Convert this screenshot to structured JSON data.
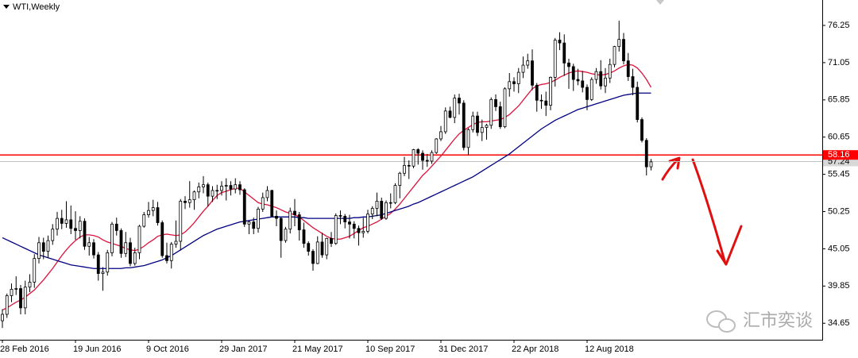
{
  "chart_data": {
    "type": "candlestick",
    "title": "WTI,Weekly",
    "watermark": "汇市奕谈",
    "categories": [
      "28 Feb 2016",
      null,
      null,
      null,
      null,
      null,
      null,
      null,
      null,
      null,
      null,
      null,
      null,
      null,
      null,
      null,
      "19 Jun 2016",
      null,
      null,
      null,
      null,
      null,
      null,
      null,
      null,
      null,
      null,
      null,
      null,
      null,
      null,
      null,
      "9 Oct 2016",
      null,
      null,
      null,
      null,
      null,
      null,
      null,
      null,
      null,
      null,
      null,
      null,
      null,
      null,
      null,
      "29 Jan 2017",
      null,
      null,
      null,
      null,
      null,
      null,
      null,
      null,
      null,
      null,
      null,
      null,
      null,
      null,
      null,
      "21 May 2017",
      null,
      null,
      null,
      null,
      null,
      null,
      null,
      null,
      null,
      null,
      null,
      null,
      null,
      null,
      null,
      "10 Sep 2017",
      null,
      null,
      null,
      null,
      null,
      null,
      null,
      null,
      null,
      null,
      null,
      null,
      null,
      null,
      null,
      "31 Dec 2017",
      null,
      null,
      null,
      null,
      null,
      null,
      null,
      null,
      null,
      null,
      null,
      null,
      null,
      null,
      null,
      "22 Apr 2018",
      null,
      null,
      null,
      null,
      null,
      null,
      null,
      null,
      null,
      null,
      null,
      null,
      null,
      null,
      null,
      "12 Aug 2018",
      null,
      null,
      null,
      null,
      null,
      null,
      null,
      null,
      null,
      null,
      null,
      null,
      null,
      null
    ],
    "ohlc": [
      [
        35.0,
        36.6,
        34.0,
        35.9
      ],
      [
        35.9,
        38.8,
        35.4,
        38.5
      ],
      [
        38.5,
        40.2,
        37.6,
        39.4
      ],
      [
        39.4,
        41.2,
        38.6,
        39.5
      ],
      [
        39.5,
        40.0,
        35.9,
        36.8
      ],
      [
        36.8,
        40.6,
        35.9,
        39.7
      ],
      [
        39.7,
        41.5,
        39.0,
        40.4
      ],
      [
        40.4,
        44.3,
        39.6,
        43.7
      ],
      [
        43.7,
        46.7,
        43.0,
        45.9
      ],
      [
        45.9,
        46.6,
        43.6,
        44.7
      ],
      [
        44.7,
        46.9,
        43.8,
        46.2
      ],
      [
        46.2,
        48.5,
        45.6,
        47.8
      ],
      [
        47.8,
        50.2,
        46.9,
        49.3
      ],
      [
        49.3,
        50.5,
        47.8,
        48.6
      ],
      [
        48.6,
        51.7,
        48.0,
        49.1
      ],
      [
        49.1,
        51.1,
        47.1,
        47.9
      ],
      [
        47.9,
        50.3,
        46.3,
        47.6
      ],
      [
        47.6,
        49.6,
        46.5,
        48.9
      ],
      [
        48.9,
        49.3,
        44.9,
        45.4
      ],
      [
        45.4,
        46.7,
        44.1,
        45.9
      ],
      [
        45.9,
        46.4,
        43.7,
        44.2
      ],
      [
        44.2,
        44.6,
        40.6,
        41.6
      ],
      [
        41.6,
        42.5,
        39.2,
        41.8
      ],
      [
        41.8,
        44.9,
        41.3,
        44.5
      ],
      [
        44.5,
        48.8,
        44.0,
        48.5
      ],
      [
        48.5,
        49.4,
        46.9,
        47.6
      ],
      [
        47.6,
        47.9,
        43.8,
        44.4
      ],
      [
        44.4,
        47.4,
        43.9,
        45.9
      ],
      [
        45.9,
        46.6,
        42.6,
        43.0
      ],
      [
        43.0,
        45.2,
        42.7,
        44.5
      ],
      [
        44.5,
        48.4,
        43.6,
        48.2
      ],
      [
        48.2,
        50.2,
        48.0,
        49.8
      ],
      [
        49.8,
        51.6,
        49.4,
        50.4
      ],
      [
        50.4,
        51.9,
        49.6,
        50.8
      ],
      [
        50.8,
        51.6,
        48.3,
        48.7
      ],
      [
        48.7,
        49.0,
        43.8,
        44.1
      ],
      [
        44.1,
        45.9,
        43.0,
        43.4
      ],
      [
        43.4,
        46.0,
        42.3,
        45.7
      ],
      [
        45.7,
        49.0,
        45.2,
        46.1
      ],
      [
        46.1,
        52.0,
        44.8,
        51.7
      ],
      [
        51.7,
        52.4,
        50.6,
        51.5
      ],
      [
        51.5,
        54.5,
        50.8,
        51.9
      ],
      [
        51.9,
        53.2,
        50.5,
        53.0
      ],
      [
        53.0,
        54.3,
        52.1,
        53.7
      ],
      [
        53.7,
        55.2,
        52.8,
        54.0
      ],
      [
        54.0,
        54.3,
        51.0,
        52.4
      ],
      [
        52.4,
        53.8,
        51.6,
        53.2
      ],
      [
        53.2,
        54.0,
        52.0,
        53.2
      ],
      [
        53.2,
        54.5,
        52.5,
        53.8
      ],
      [
        53.8,
        54.9,
        51.8,
        53.9
      ],
      [
        53.9,
        54.5,
        52.5,
        53.4
      ],
      [
        53.4,
        54.9,
        52.8,
        54.0
      ],
      [
        54.0,
        54.5,
        52.6,
        53.3
      ],
      [
        53.3,
        53.5,
        48.1,
        48.5
      ],
      [
        48.5,
        49.0,
        47.1,
        48.8
      ],
      [
        48.8,
        49.4,
        47.1,
        47.9
      ],
      [
        47.9,
        50.9,
        47.3,
        50.6
      ],
      [
        50.6,
        52.9,
        50.2,
        52.2
      ],
      [
        52.2,
        53.8,
        51.7,
        53.2
      ],
      [
        53.2,
        53.3,
        49.5,
        49.6
      ],
      [
        49.6,
        50.4,
        48.2,
        49.3
      ],
      [
        49.3,
        49.5,
        43.8,
        46.2
      ],
      [
        46.2,
        48.1,
        45.9,
        47.8
      ],
      [
        47.8,
        50.8,
        47.2,
        50.3
      ],
      [
        50.3,
        52.0,
        48.2,
        49.8
      ],
      [
        49.8,
        50.2,
        46.2,
        47.7
      ],
      [
        47.7,
        48.7,
        45.2,
        45.8
      ],
      [
        45.8,
        46.1,
        44.1,
        44.7
      ],
      [
        44.7,
        45.0,
        42.0,
        43.0
      ],
      [
        43.0,
        46.8,
        42.9,
        46.0
      ],
      [
        46.0,
        47.3,
        43.8,
        44.2
      ],
      [
        44.2,
        46.6,
        43.6,
        46.5
      ],
      [
        46.5,
        47.4,
        45.3,
        45.8
      ],
      [
        45.8,
        50.0,
        45.6,
        49.7
      ],
      [
        49.7,
        50.4,
        48.5,
        49.6
      ],
      [
        49.6,
        49.9,
        47.9,
        48.8
      ],
      [
        48.8,
        49.8,
        46.5,
        48.5
      ],
      [
        48.5,
        48.9,
        46.5,
        47.9
      ],
      [
        47.9,
        48.3,
        45.5,
        47.3
      ],
      [
        47.3,
        49.4,
        46.6,
        47.5
      ],
      [
        47.5,
        50.5,
        47.2,
        49.9
      ],
      [
        49.9,
        51.0,
        49.2,
        50.7
      ],
      [
        50.7,
        52.9,
        49.6,
        51.7
      ],
      [
        51.7,
        52.2,
        49.1,
        49.3
      ],
      [
        49.3,
        51.8,
        49.1,
        51.5
      ],
      [
        51.5,
        52.8,
        50.7,
        51.5
      ],
      [
        51.5,
        54.2,
        51.3,
        53.9
      ],
      [
        53.9,
        55.8,
        52.1,
        55.6
      ],
      [
        55.6,
        57.9,
        55.2,
        56.7
      ],
      [
        56.7,
        57.4,
        54.8,
        56.6
      ],
      [
        56.6,
        59.0,
        56.3,
        58.9
      ],
      [
        58.9,
        59.1,
        56.8,
        58.4
      ],
      [
        58.4,
        58.8,
        56.1,
        57.4
      ],
      [
        57.4,
        58.3,
        56.5,
        57.3
      ],
      [
        57.3,
        58.8,
        56.9,
        58.5
      ],
      [
        58.5,
        60.5,
        58.3,
        60.4
      ],
      [
        60.4,
        62.2,
        60.1,
        61.4
      ],
      [
        61.4,
        64.8,
        61.1,
        64.3
      ],
      [
        64.3,
        64.9,
        63.3,
        63.4
      ],
      [
        63.4,
        66.6,
        62.6,
        66.1
      ],
      [
        66.1,
        66.7,
        63.8,
        65.4
      ],
      [
        65.4,
        65.8,
        58.8,
        59.2
      ],
      [
        59.2,
        61.9,
        58.1,
        61.7
      ],
      [
        61.7,
        64.2,
        61.3,
        63.6
      ],
      [
        63.6,
        64.2,
        60.8,
        61.3
      ],
      [
        61.3,
        63.1,
        60.1,
        62.0
      ],
      [
        62.0,
        62.5,
        60.3,
        62.3
      ],
      [
        62.3,
        66.2,
        61.8,
        65.9
      ],
      [
        65.9,
        66.6,
        64.3,
        64.9
      ],
      [
        64.9,
        65.6,
        61.8,
        62.1
      ],
      [
        62.1,
        67.6,
        61.9,
        67.4
      ],
      [
        67.4,
        69.6,
        66.3,
        68.4
      ],
      [
        68.4,
        69.0,
        67.0,
        68.1
      ],
      [
        68.1,
        70.3,
        66.8,
        69.7
      ],
      [
        69.7,
        71.9,
        68.9,
        70.7
      ],
      [
        70.7,
        72.3,
        70.2,
        71.3
      ],
      [
        71.3,
        72.9,
        67.2,
        67.9
      ],
      [
        67.9,
        68.2,
        64.2,
        65.8
      ],
      [
        65.8,
        66.6,
        64.6,
        65.7
      ],
      [
        65.7,
        67.0,
        63.6,
        65.1
      ],
      [
        65.1,
        69.1,
        64.4,
        69.0
      ],
      [
        69.0,
        74.5,
        67.7,
        74.2
      ],
      [
        74.2,
        75.3,
        72.8,
        73.8
      ],
      [
        73.8,
        75.0,
        69.2,
        71.0
      ],
      [
        71.0,
        71.6,
        67.4,
        70.5
      ],
      [
        70.5,
        70.9,
        67.1,
        68.7
      ],
      [
        68.7,
        70.2,
        67.9,
        68.5
      ],
      [
        68.5,
        69.9,
        66.9,
        67.6
      ],
      [
        67.6,
        68.0,
        64.4,
        65.9
      ],
      [
        65.9,
        69.0,
        65.7,
        68.7
      ],
      [
        68.7,
        70.3,
        68.1,
        69.8
      ],
      [
        69.8,
        71.4,
        67.3,
        67.8
      ],
      [
        67.8,
        70.3,
        66.8,
        68.9
      ],
      [
        68.9,
        71.6,
        68.2,
        70.8
      ],
      [
        70.8,
        73.4,
        70.4,
        73.3
      ],
      [
        73.3,
        76.9,
        72.6,
        74.3
      ],
      [
        74.3,
        75.2,
        70.8,
        71.3
      ],
      [
        71.3,
        72.4,
        68.5,
        69.1
      ],
      [
        69.1,
        70.2,
        66.5,
        67.6
      ],
      [
        67.6,
        68.4,
        62.7,
        63.1
      ],
      [
        63.1,
        63.4,
        59.9,
        60.2
      ],
      [
        60.2,
        60.5,
        55.3,
        56.5
      ],
      [
        56.5,
        57.6,
        56.0,
        57.2
      ]
    ],
    "moving_averages": [
      {
        "color": "#dc143c",
        "values": [
          36.5,
          36.8,
          37.2,
          37.6,
          37.9,
          38.3,
          38.8,
          39.3,
          40.0,
          40.7,
          41.5,
          42.3,
          43.2,
          44.1,
          44.9,
          45.6,
          46.2,
          46.7,
          47.0,
          47.0,
          46.9,
          46.7,
          46.3,
          46.0,
          45.8,
          45.6,
          45.4,
          45.1,
          44.9,
          44.8,
          45.0,
          45.4,
          45.9,
          46.3,
          46.8,
          47.0,
          47.1,
          47.0,
          46.9,
          47.0,
          47.4,
          48.0,
          48.7,
          49.5,
          50.3,
          51.0,
          51.8,
          52.5,
          52.9,
          53.1,
          53.3,
          53.5,
          53.5,
          53.0,
          52.5,
          52.0,
          51.5,
          51.3,
          51.2,
          51.0,
          50.8,
          50.5,
          50.2,
          50.0,
          49.8,
          49.5,
          49.0,
          48.5,
          48.0,
          47.6,
          47.2,
          46.8,
          46.5,
          46.4,
          46.4,
          46.6,
          46.8,
          47.2,
          47.6,
          48.0,
          48.2,
          48.5,
          48.8,
          49.2,
          49.6,
          50.0,
          50.6,
          51.3,
          52.1,
          52.9,
          53.7,
          54.5,
          55.3,
          55.9,
          56.6,
          57.3,
          58.0,
          58.8,
          59.6,
          60.4,
          61.1,
          61.6,
          62.0,
          62.4,
          62.7,
          62.8,
          62.8,
          62.9,
          63.0,
          63.1,
          63.4,
          63.8,
          64.4,
          65.0,
          65.8,
          66.6,
          67.4,
          67.8,
          68.0,
          68.1,
          68.3,
          68.6,
          69.0,
          69.3,
          69.6,
          69.8,
          69.9,
          69.8,
          69.7,
          69.5,
          69.4,
          69.3,
          69.4,
          69.6,
          69.9,
          70.3,
          70.6,
          70.8,
          70.7,
          70.3,
          69.6,
          68.7,
          67.6
        ]
      },
      {
        "color": "#000080",
        "values": [
          46.6,
          46.3,
          46.0,
          45.7,
          45.4,
          45.1,
          44.8,
          44.5,
          44.2,
          44.0,
          43.8,
          43.6,
          43.4,
          43.2,
          43.0,
          42.8,
          42.7,
          42.6,
          42.5,
          42.4,
          42.3,
          42.3,
          42.3,
          42.3,
          42.3,
          42.3,
          42.3,
          42.4,
          42.4,
          42.5,
          42.6,
          42.7,
          42.9,
          43.1,
          43.3,
          43.5,
          43.8,
          44.1,
          44.5,
          44.9,
          45.3,
          45.7,
          46.1,
          46.5,
          46.9,
          47.2,
          47.5,
          47.8,
          48.0,
          48.2,
          48.4,
          48.6,
          48.8,
          48.9,
          49.0,
          49.1,
          49.2,
          49.3,
          49.4,
          49.5,
          49.5,
          49.5,
          49.5,
          49.5,
          49.5,
          49.4,
          49.4,
          49.3,
          49.3,
          49.3,
          49.3,
          49.3,
          49.3,
          49.3,
          49.3,
          49.3,
          49.3,
          49.4,
          49.4,
          49.5,
          49.5,
          49.6,
          49.7,
          49.8,
          50.0,
          50.2,
          50.4,
          50.6,
          50.8,
          51.0,
          51.3,
          51.5,
          51.8,
          52.1,
          52.4,
          52.7,
          53.0,
          53.3,
          53.6,
          53.9,
          54.2,
          54.5,
          54.8,
          55.1,
          55.5,
          55.9,
          56.3,
          56.7,
          57.1,
          57.5,
          57.9,
          58.3,
          58.8,
          59.3,
          59.8,
          60.3,
          60.8,
          61.3,
          61.8,
          62.2,
          62.6,
          63.0,
          63.3,
          63.6,
          63.9,
          64.2,
          64.5,
          64.7,
          64.9,
          65.1,
          65.3,
          65.5,
          65.7,
          65.9,
          66.1,
          66.3,
          66.5,
          66.6,
          66.7,
          66.8,
          66.8,
          66.8,
          66.8
        ]
      }
    ],
    "lines": [
      {
        "value": 58.16,
        "color": "#ff0000"
      },
      {
        "value": 57.24,
        "color": "#c0c0c0"
      }
    ],
    "ylim": [
      32.46,
      79.8
    ],
    "yticks": [
      76.25,
      71.05,
      65.85,
      60.65,
      55.45,
      50.25,
      45.05,
      39.85,
      34.65
    ],
    "grid": false
  }
}
